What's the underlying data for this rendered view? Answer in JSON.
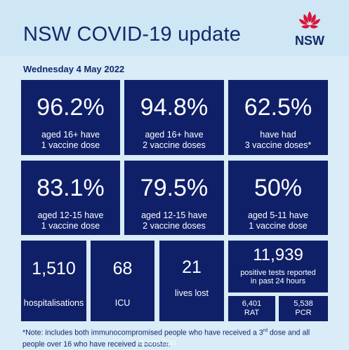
{
  "header": {
    "title": "NSW COVID-19 update",
    "logo_text": "NSW",
    "date": "Wednesday 4 May 2022"
  },
  "stats_row1": [
    {
      "value": "96.2%",
      "line1": "aged 16+ have",
      "line2": "1 vaccine dose"
    },
    {
      "value": "94.8%",
      "line1": "aged 16+ have",
      "line2": "2 vaccine doses"
    },
    {
      "value": "62.5%",
      "line1": "have had",
      "line2": "3 vaccine doses*"
    }
  ],
  "stats_row2": [
    {
      "value": "83.1%",
      "line1": "aged 12-15 have",
      "line2": "1 vaccine dose"
    },
    {
      "value": "79.5%",
      "line1": "aged 12-15 have",
      "line2": "2 vaccine doses"
    },
    {
      "value": "50%",
      "line1": "aged 5-11 have",
      "line2": "1 vaccine dose"
    }
  ],
  "stats_row3": {
    "hospitalisations": {
      "value": "1,510",
      "label": "hospitalisations"
    },
    "icu": {
      "value": "68",
      "label": "ICU"
    },
    "lives_lost": {
      "value": "21",
      "label": "lives lost"
    },
    "positive_tests": {
      "value": "11,939",
      "line1": "positive tests reported",
      "line2": "in past 24 hours"
    },
    "rat": {
      "value": "6,401",
      "label": "RAT"
    },
    "pcr": {
      "value": "5,538",
      "label": "PCR"
    }
  },
  "note": {
    "part1": "*Note: includes both immunocompromised people who have received a 3",
    "sup": "rd",
    "part2": " dose and all people over 16 who have received a booster."
  },
  "watermark": "china2au",
  "colors": {
    "tile": "#0f2068",
    "background": "#d9ecf7",
    "text_dark": "#102a6b",
    "logo_red": "#d7153a"
  }
}
